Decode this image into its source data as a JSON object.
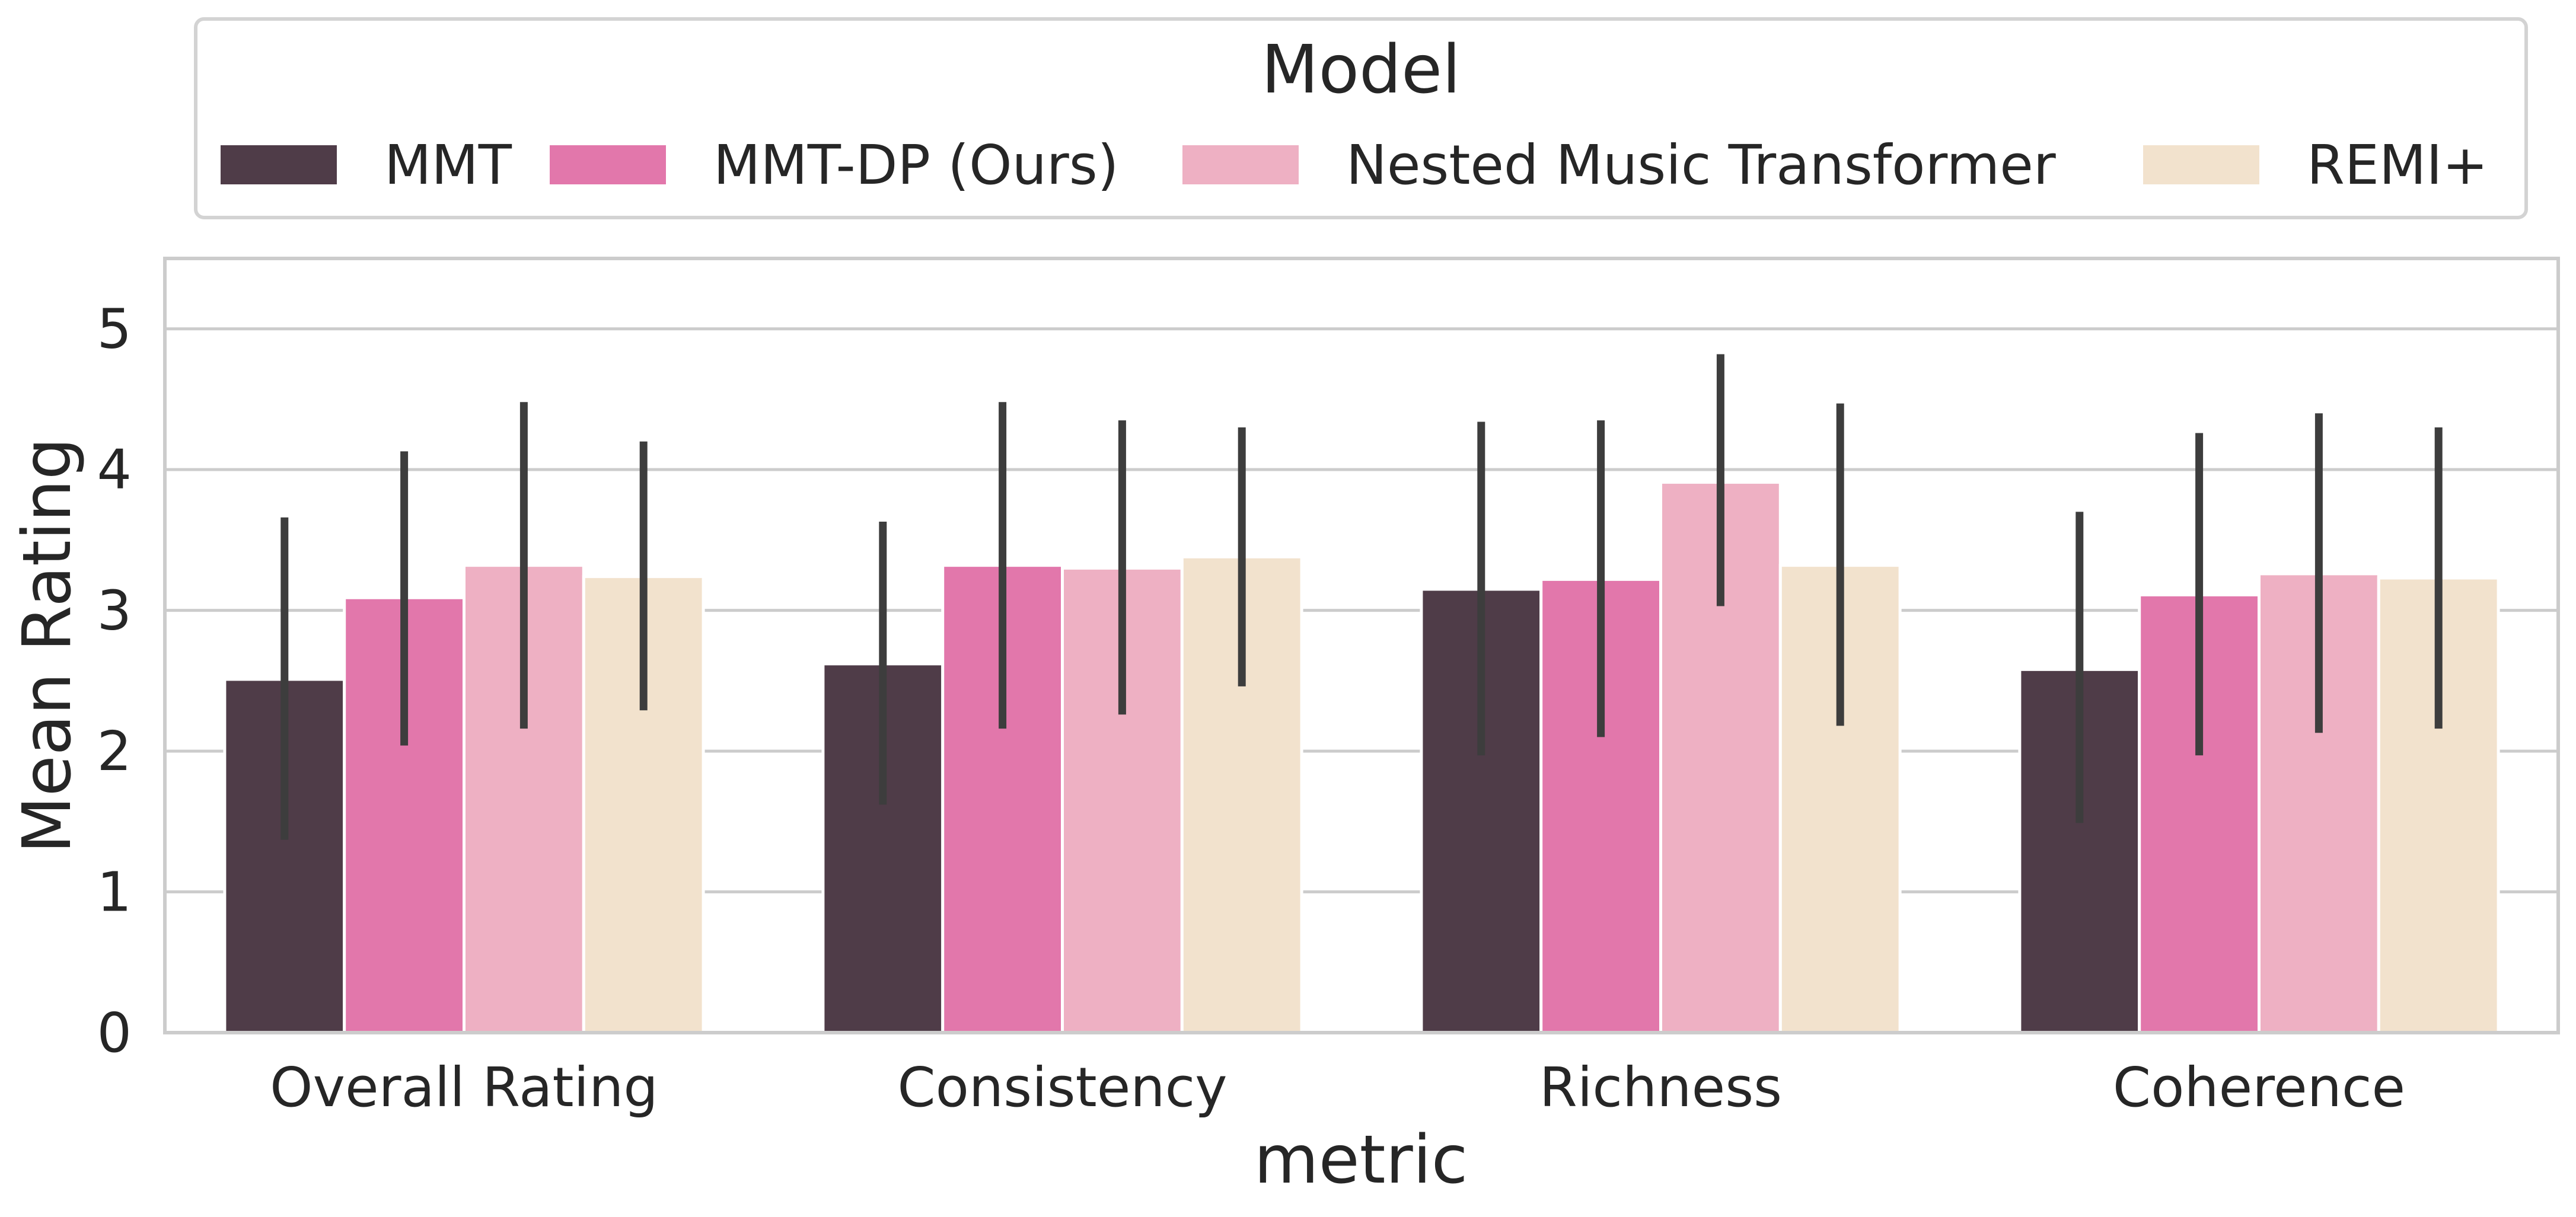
{
  "chart_data": {
    "type": "bar",
    "title": "",
    "xlabel": "metric",
    "ylabel": "Mean Rating",
    "ylim": [
      0,
      5.5
    ],
    "yticks": [
      0,
      1,
      2,
      3,
      4,
      5
    ],
    "grid": true,
    "legend": {
      "title": "Model",
      "placement": "top-center"
    },
    "categories": [
      "Overall Rating",
      "Consistency",
      "Richness",
      "Coherence"
    ],
    "series": [
      {
        "name": "MMT",
        "color": "#4f3c48",
        "values": [
          2.51,
          2.62,
          3.15,
          2.58
        ],
        "err_low": [
          1.37,
          1.62,
          1.97,
          1.49
        ],
        "err_high": [
          3.66,
          3.63,
          4.34,
          3.7
        ]
      },
      {
        "name": "MMT-DP (Ours)",
        "color": "#e277ab",
        "values": [
          3.09,
          3.32,
          3.22,
          3.11
        ],
        "err_low": [
          2.04,
          2.16,
          2.1,
          1.97
        ],
        "err_high": [
          4.13,
          4.48,
          4.35,
          4.26
        ]
      },
      {
        "name": "Nested Music Transformer",
        "color": "#eeb0c3",
        "values": [
          3.32,
          3.3,
          3.91,
          3.26
        ],
        "err_low": [
          2.16,
          2.26,
          3.03,
          2.13
        ],
        "err_high": [
          4.48,
          4.35,
          4.82,
          4.4
        ]
      },
      {
        "name": "REMI+",
        "color": "#f2e2cd",
        "values": [
          3.24,
          3.38,
          3.32,
          3.23
        ],
        "err_low": [
          2.29,
          2.46,
          2.18,
          2.16
        ],
        "err_high": [
          4.2,
          4.3,
          4.47,
          4.3
        ]
      }
    ]
  }
}
